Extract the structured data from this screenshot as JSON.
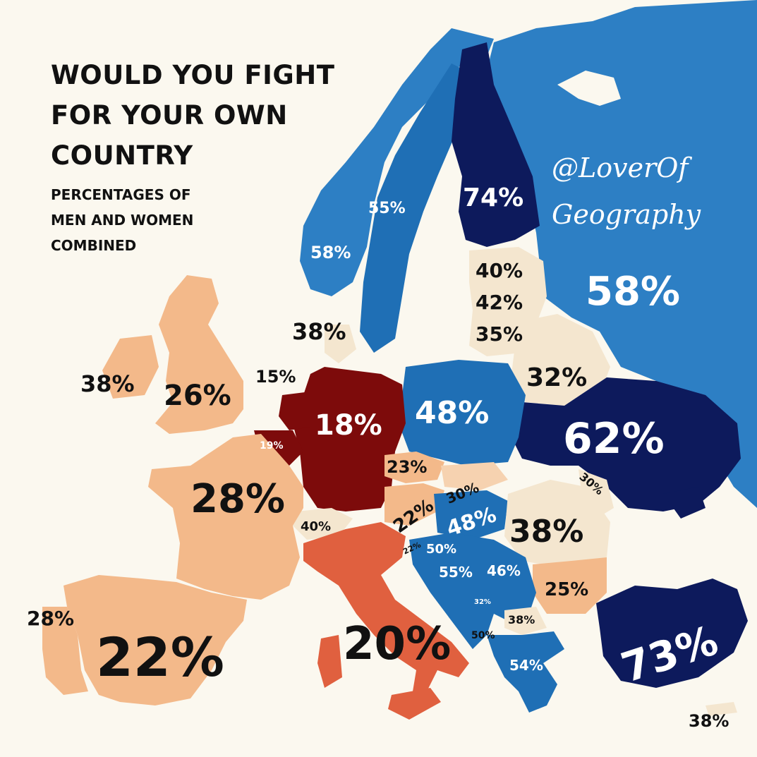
{
  "title": {
    "line1": "WOULD YOU FIGHT",
    "line2": "FOR YOUR OWN",
    "line3": "COUNTRY"
  },
  "subtitle": {
    "line1": "PERCENTAGES OF",
    "line2": "MEN AND WOMEN",
    "line3": "COMBINED"
  },
  "credit": {
    "line1": "@LoverOf",
    "line2": "Geography"
  },
  "colors": {
    "background": "#fbf8ef",
    "dark_navy": "#0d1a5c",
    "mid_blue": "#1f6fb5",
    "light_blue": "#2d7fc4",
    "peach": "#f3b98a",
    "cream": "#f4e6cf",
    "dark_red": "#7d0b0b",
    "red_orange": "#e0603f",
    "light_peach": "#f6d2b0"
  },
  "labels": {
    "russia": "58%",
    "finland": "74%",
    "sweden": "55%",
    "norway": "58%",
    "estonia": "40%",
    "latvia": "42%",
    "lithuania": "35%",
    "belarus": "32%",
    "ukraine": "62%",
    "turkey": "73%",
    "poland": "48%",
    "germany": "18%",
    "netherlands": "15%",
    "belgium": "19%",
    "denmark": "38%",
    "ireland": "38%",
    "uk": "26%",
    "france": "28%",
    "spain": "22%",
    "portugal": "28%",
    "italy": "20%",
    "switzerland": "40%",
    "czechia": "23%",
    "austria": "22%",
    "slovakia": "30%",
    "hungary": "48%",
    "moldova": "30%",
    "romania": "38%",
    "slovenia": "22%",
    "croatia": "50%",
    "bosnia": "55%",
    "serbia": "46%",
    "bulgaria": "25%",
    "montenegro": "32%",
    "macedonia": "38%",
    "albania": "50%",
    "greece": "54%",
    "cyprus": "38%"
  }
}
